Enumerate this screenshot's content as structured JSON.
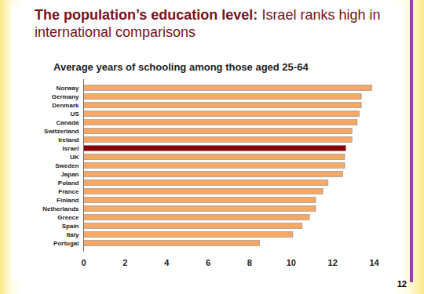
{
  "chart_data": {
    "type": "bar",
    "orientation": "horizontal",
    "title": "The population’s education level: Israel ranks high in international comparisons",
    "subtitle": "Average years of schooling among those aged 25-64",
    "categories": [
      "Norway",
      "Germany",
      "Denmark",
      "US",
      "Canada",
      "Switzerland",
      "Ireland",
      "Israel",
      "UK",
      "Sweden",
      "Japan",
      "Poland",
      "France",
      "Finland",
      "Netherlands",
      "Greece",
      "Spain",
      "Italy",
      "Portugal"
    ],
    "values": [
      13.9,
      13.4,
      13.4,
      13.3,
      13.2,
      12.95,
      12.95,
      12.65,
      12.6,
      12.6,
      12.5,
      11.8,
      11.55,
      11.2,
      11.2,
      10.9,
      10.55,
      10.1,
      8.5
    ],
    "colors": [
      "#f6a864",
      "#f6a864",
      "#f6a864",
      "#f6a864",
      "#f6a864",
      "#f6a864",
      "#f6a864",
      "#8b0000",
      "#f6a864",
      "#f6a864",
      "#f6a864",
      "#f6a864",
      "#f6a864",
      "#f6a864",
      "#f6a864",
      "#f6a864",
      "#f6a864",
      "#f6a864",
      "#f6a864"
    ],
    "xlim": [
      0,
      14
    ],
    "xticks": [
      0,
      2,
      4,
      6,
      8,
      10,
      12,
      14
    ],
    "grid": false,
    "annotations": [
      "12"
    ]
  }
}
